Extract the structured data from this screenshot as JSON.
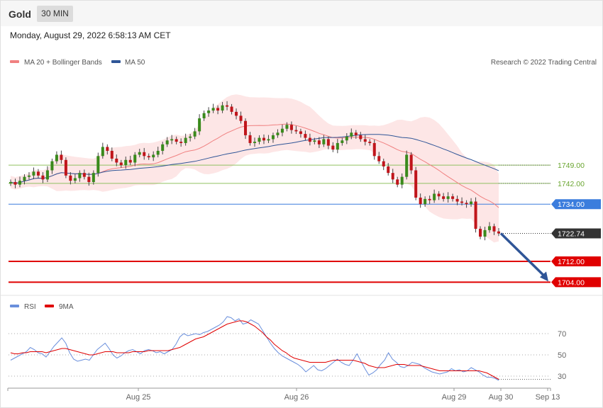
{
  "header": {
    "instrument": "Gold",
    "timeframe": "30 MIN",
    "datetime": "Monday, August 29, 2022 6:58:13 AM CET"
  },
  "legend": {
    "ma20": "MA 20 + Bollinger Bands",
    "ma50": "MA 50",
    "credit": "Research © 2022 Trading Central",
    "rsi": "RSI",
    "ma9": "9MA"
  },
  "colors": {
    "ma20": "#f08080",
    "ma50": "#2f5597",
    "band": "#fde0e0",
    "candle_up": "#3a8a1c",
    "candle_down": "#c0151b",
    "support": "#e00000",
    "resistance": "#90c060",
    "pivot": "#3b7ddd",
    "arrow": "#2f5597",
    "rsi": "#6a8fdc",
    "rsi_ma": "#e00000"
  },
  "chart_data": [
    {
      "type": "candlestick",
      "title": "Gold",
      "ylim": [
        1700,
        1785
      ],
      "x_ticks": [
        "Aug 25",
        "Aug 26",
        "Aug 29",
        "Aug 30",
        "Sep 13"
      ],
      "levels": [
        {
          "value": 1749.0,
          "label": "1749.00",
          "kind": "resistance"
        },
        {
          "value": 1742.0,
          "label": "1742.00",
          "kind": "resistance"
        },
        {
          "value": 1734.0,
          "label": "1734.00",
          "kind": "pivot"
        },
        {
          "value": 1722.74,
          "label": "1722.74",
          "kind": "last"
        },
        {
          "value": 1712.0,
          "label": "1712.00",
          "kind": "support"
        },
        {
          "value": 1704.0,
          "label": "1704.00",
          "kind": "support"
        }
      ],
      "forecast_arrow": {
        "from": 1722.74,
        "to": 1704.0
      },
      "close": [
        1742.5,
        1741.5,
        1743.0,
        1744.5,
        1745.0,
        1746.5,
        1745.0,
        1743.5,
        1747.0,
        1750.5,
        1753.0,
        1751.0,
        1745.0,
        1743.0,
        1744.0,
        1746.0,
        1744.5,
        1742.5,
        1746.0,
        1752.5,
        1756.0,
        1754.5,
        1751.5,
        1750.0,
        1749.0,
        1751.0,
        1750.0,
        1753.0,
        1754.0,
        1752.5,
        1752.0,
        1753.0,
        1754.5,
        1757.0,
        1758.5,
        1759.0,
        1758.0,
        1757.5,
        1759.5,
        1760.0,
        1762.0,
        1767.0,
        1769.0,
        1770.0,
        1771.0,
        1770.0,
        1772.0,
        1771.5,
        1769.5,
        1768.0,
        1766.0,
        1760.5,
        1757.5,
        1758.0,
        1759.5,
        1758.5,
        1759.0,
        1760.5,
        1761.5,
        1763.0,
        1764.5,
        1762.5,
        1762.0,
        1761.0,
        1759.5,
        1758.0,
        1758.5,
        1757.0,
        1759.0,
        1756.5,
        1755.0,
        1757.5,
        1758.5,
        1760.0,
        1761.5,
        1760.5,
        1759.0,
        1758.0,
        1757.5,
        1752.5,
        1750.5,
        1748.5,
        1746.0,
        1743.5,
        1741.5,
        1744.5,
        1753.0,
        1747.0,
        1736.5,
        1734.0,
        1736.0,
        1735.5,
        1738.0,
        1737.0,
        1736.0,
        1737.0,
        1736.0,
        1735.0,
        1734.5,
        1734.0,
        1735.0,
        1724.5,
        1721.5,
        1724.0,
        1725.5,
        1723.5,
        1722.74
      ]
    },
    {
      "type": "line",
      "ylim": [
        20,
        90
      ],
      "yticks": [
        30,
        50,
        70
      ],
      "series": [
        {
          "name": "RSI",
          "values": [
            45,
            47,
            49,
            51,
            53,
            57,
            55,
            52,
            51,
            48,
            53,
            58,
            62,
            66,
            61,
            52,
            46,
            44,
            45,
            46,
            45,
            50,
            55,
            58,
            61,
            56,
            50,
            47,
            49,
            52,
            54,
            55,
            53,
            51,
            54,
            55,
            54,
            52,
            53,
            51,
            53,
            55,
            60,
            67,
            70,
            68,
            69,
            70,
            69,
            71,
            72,
            74,
            76,
            78,
            81,
            86,
            85,
            82,
            84,
            79,
            80,
            83,
            81,
            79,
            73,
            67,
            61,
            56,
            52,
            49,
            47,
            45,
            43,
            41,
            38,
            34,
            37,
            40,
            36,
            35,
            37,
            40,
            43,
            46,
            43,
            41,
            40,
            45,
            51,
            44,
            37,
            31,
            33,
            36,
            41,
            45,
            52,
            46,
            43,
            39,
            38,
            40,
            43,
            42,
            41,
            38,
            36,
            34,
            33,
            32,
            33,
            34,
            37,
            35,
            36,
            34,
            35,
            38,
            36,
            34,
            31,
            29,
            29,
            28,
            26
          ]
        },
        {
          "name": "9MA",
          "values": [
            52,
            51,
            51,
            52,
            52,
            53,
            53,
            53,
            53,
            52,
            53,
            54,
            55,
            56,
            56,
            55,
            54,
            53,
            52,
            51,
            50,
            50,
            51,
            52,
            53,
            53,
            53,
            52,
            52,
            52,
            52,
            53,
            53,
            53,
            53,
            54,
            54,
            54,
            54,
            54,
            54,
            55,
            56,
            57,
            59,
            61,
            63,
            65,
            66,
            67,
            69,
            71,
            73,
            75,
            77,
            79,
            80,
            81,
            82,
            82,
            81,
            79,
            77,
            74,
            71,
            67,
            64,
            60,
            57,
            54,
            52,
            49,
            47,
            46,
            45,
            44,
            43,
            43,
            43,
            43,
            43,
            44,
            45,
            45,
            45,
            45,
            45,
            45,
            44,
            43,
            42,
            40,
            39,
            38,
            38,
            38,
            39,
            40,
            41,
            41,
            41,
            40,
            40,
            40,
            40,
            39,
            38,
            37,
            36,
            35,
            35,
            35,
            35,
            35,
            35,
            35,
            35,
            35,
            35,
            35,
            34,
            33,
            31,
            29,
            27
          ]
        }
      ]
    }
  ]
}
